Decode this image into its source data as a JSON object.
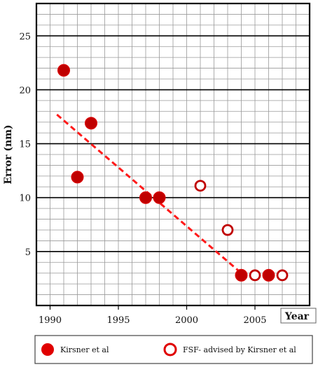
{
  "chart_data": {
    "type": "scatter",
    "title": "",
    "ylabel": "Error (nm)",
    "xlabel": "Year",
    "xlim": [
      1989,
      2009
    ],
    "ylim": [
      0,
      28
    ],
    "x_ticks": [
      "1990",
      "1995",
      "2000",
      "2005"
    ],
    "y_ticks": [
      "5",
      "10",
      "15",
      "20",
      "25"
    ],
    "grid": true,
    "legend_position": "bottom",
    "series": [
      {
        "name": "Kirsner et al",
        "marker": "filled-circle",
        "color": "#c00000",
        "points": [
          {
            "x": 1991,
            "y": 21.8
          },
          {
            "x": 1992,
            "y": 11.9
          },
          {
            "x": 1993,
            "y": 16.9
          },
          {
            "x": 1997,
            "y": 10.0
          },
          {
            "x": 1998,
            "y": 10.0
          },
          {
            "x": 2004,
            "y": 2.8
          },
          {
            "x": 2006,
            "y": 2.8
          }
        ]
      },
      {
        "name": "FSF- advised by Kirsner et al",
        "marker": "open-circle",
        "color": "#c00000",
        "points": [
          {
            "x": 2001,
            "y": 11.1
          },
          {
            "x": 2003,
            "y": 7.0
          },
          {
            "x": 2005,
            "y": 2.8
          },
          {
            "x": 2007,
            "y": 2.8
          }
        ]
      }
    ],
    "trend_line": {
      "style": "dashed",
      "color": "#ff1a1a",
      "from": {
        "x": 1990.5,
        "y": 17.7
      },
      "to": {
        "x": 2004,
        "y": 3.0
      }
    }
  }
}
